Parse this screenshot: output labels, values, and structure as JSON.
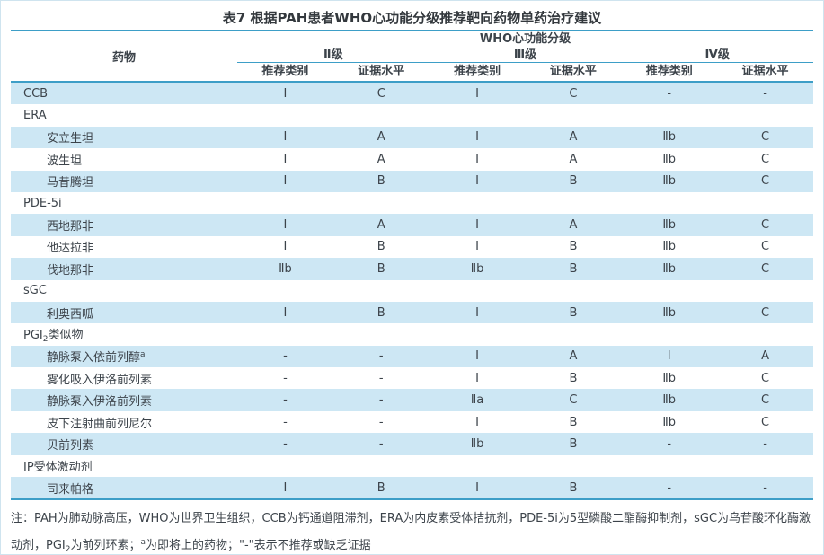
{
  "page": {
    "title": "表7 根据PAH患者WHO心功能分级推荐靶向药物单药治疗建议"
  },
  "colors": {
    "rule_line": "#3d9ec7",
    "shaded_row": "#cde7f4",
    "text": "#3c434a",
    "page_border": "#cfe4ef"
  },
  "table": {
    "drug_column_header": "药物",
    "who_group_header": "WHO心功能分级",
    "class_headers": [
      "Ⅱ级",
      "Ⅲ级",
      "Ⅳ级"
    ],
    "sub_headers": [
      "推荐类别",
      "证据水平",
      "推荐类别",
      "证据水平",
      "推荐类别",
      "证据水平"
    ],
    "rows": [
      {
        "label": "CCB",
        "indent": false,
        "shaded": true,
        "values": [
          "Ⅰ",
          "C",
          "Ⅰ",
          "C",
          "-",
          "-"
        ]
      },
      {
        "label": "ERA",
        "indent": false,
        "shaded": false,
        "values": [
          "",
          "",
          "",
          "",
          "",
          ""
        ]
      },
      {
        "label": "安立生坦",
        "indent": true,
        "shaded": true,
        "values": [
          "Ⅰ",
          "A",
          "Ⅰ",
          "A",
          "Ⅱb",
          "C"
        ]
      },
      {
        "label": "波生坦",
        "indent": true,
        "shaded": false,
        "values": [
          "Ⅰ",
          "A",
          "Ⅰ",
          "A",
          "Ⅱb",
          "C"
        ]
      },
      {
        "label": "马昔腾坦",
        "indent": true,
        "shaded": true,
        "values": [
          "Ⅰ",
          "B",
          "Ⅰ",
          "B",
          "Ⅱb",
          "C"
        ]
      },
      {
        "label": "PDE-5i",
        "indent": false,
        "shaded": false,
        "values": [
          "",
          "",
          "",
          "",
          "",
          ""
        ]
      },
      {
        "label": "西地那非",
        "indent": true,
        "shaded": true,
        "values": [
          "Ⅰ",
          "A",
          "Ⅰ",
          "A",
          "Ⅱb",
          "C"
        ]
      },
      {
        "label": "他达拉非",
        "indent": true,
        "shaded": false,
        "values": [
          "Ⅰ",
          "B",
          "Ⅰ",
          "B",
          "Ⅱb",
          "C"
        ]
      },
      {
        "label": "伐地那非",
        "indent": true,
        "shaded": true,
        "values": [
          "Ⅱb",
          "B",
          "Ⅱb",
          "B",
          "Ⅱb",
          "C"
        ]
      },
      {
        "label": "sGC",
        "indent": false,
        "shaded": false,
        "values": [
          "",
          "",
          "",
          "",
          "",
          ""
        ]
      },
      {
        "label": "利奥西呱",
        "indent": true,
        "shaded": true,
        "values": [
          "Ⅰ",
          "B",
          "Ⅰ",
          "B",
          "Ⅱb",
          "C"
        ]
      },
      {
        "label": "PGI",
        "label_sub": "2",
        "label_rest": "类似物",
        "indent": false,
        "shaded": false,
        "values": [
          "",
          "",
          "",
          "",
          "",
          ""
        ]
      },
      {
        "label": "静脉泵入依前列醇",
        "label_sup": "a",
        "indent": true,
        "shaded": true,
        "values": [
          "-",
          "-",
          "Ⅰ",
          "A",
          "Ⅰ",
          "A"
        ]
      },
      {
        "label": "雾化吸入伊洛前列素",
        "indent": true,
        "shaded": false,
        "values": [
          "-",
          "-",
          "Ⅰ",
          "B",
          "Ⅱb",
          "C"
        ]
      },
      {
        "label": "静脉泵入伊洛前列素",
        "indent": true,
        "shaded": true,
        "values": [
          "-",
          "-",
          "Ⅱa",
          "C",
          "Ⅱb",
          "C"
        ]
      },
      {
        "label": "皮下注射曲前列尼尔",
        "indent": true,
        "shaded": false,
        "values": [
          "-",
          "-",
          "Ⅰ",
          "B",
          "Ⅱb",
          "C"
        ]
      },
      {
        "label": "贝前列素",
        "indent": true,
        "shaded": true,
        "values": [
          "-",
          "-",
          "Ⅱb",
          "B",
          "-",
          "-"
        ]
      },
      {
        "label": "IP受体激动剂",
        "indent": false,
        "shaded": false,
        "values": [
          "",
          "",
          "",
          "",
          "",
          ""
        ]
      },
      {
        "label": "司来帕格",
        "indent": true,
        "shaded": true,
        "values": [
          "Ⅰ",
          "B",
          "Ⅰ",
          "B",
          "-",
          "-"
        ]
      }
    ]
  },
  "note": {
    "parts": [
      {
        "t": "注：PAH为肺动脉高压，WHO为世界卫生组织，CCB为钙通道阻滞剂，ERA为内皮素受体拮抗剂，PDE-5i为5型磷酸二酯酶抑制剂，sGC为鸟苷酸环化酶激动剂，PGI"
      },
      {
        "t": "2",
        "style": "sub"
      },
      {
        "t": "为前列环素；"
      },
      {
        "t": "a",
        "style": "sup"
      },
      {
        "t": "为即将上的药物；\"-\"表示不推荐或缺乏证据"
      }
    ]
  }
}
